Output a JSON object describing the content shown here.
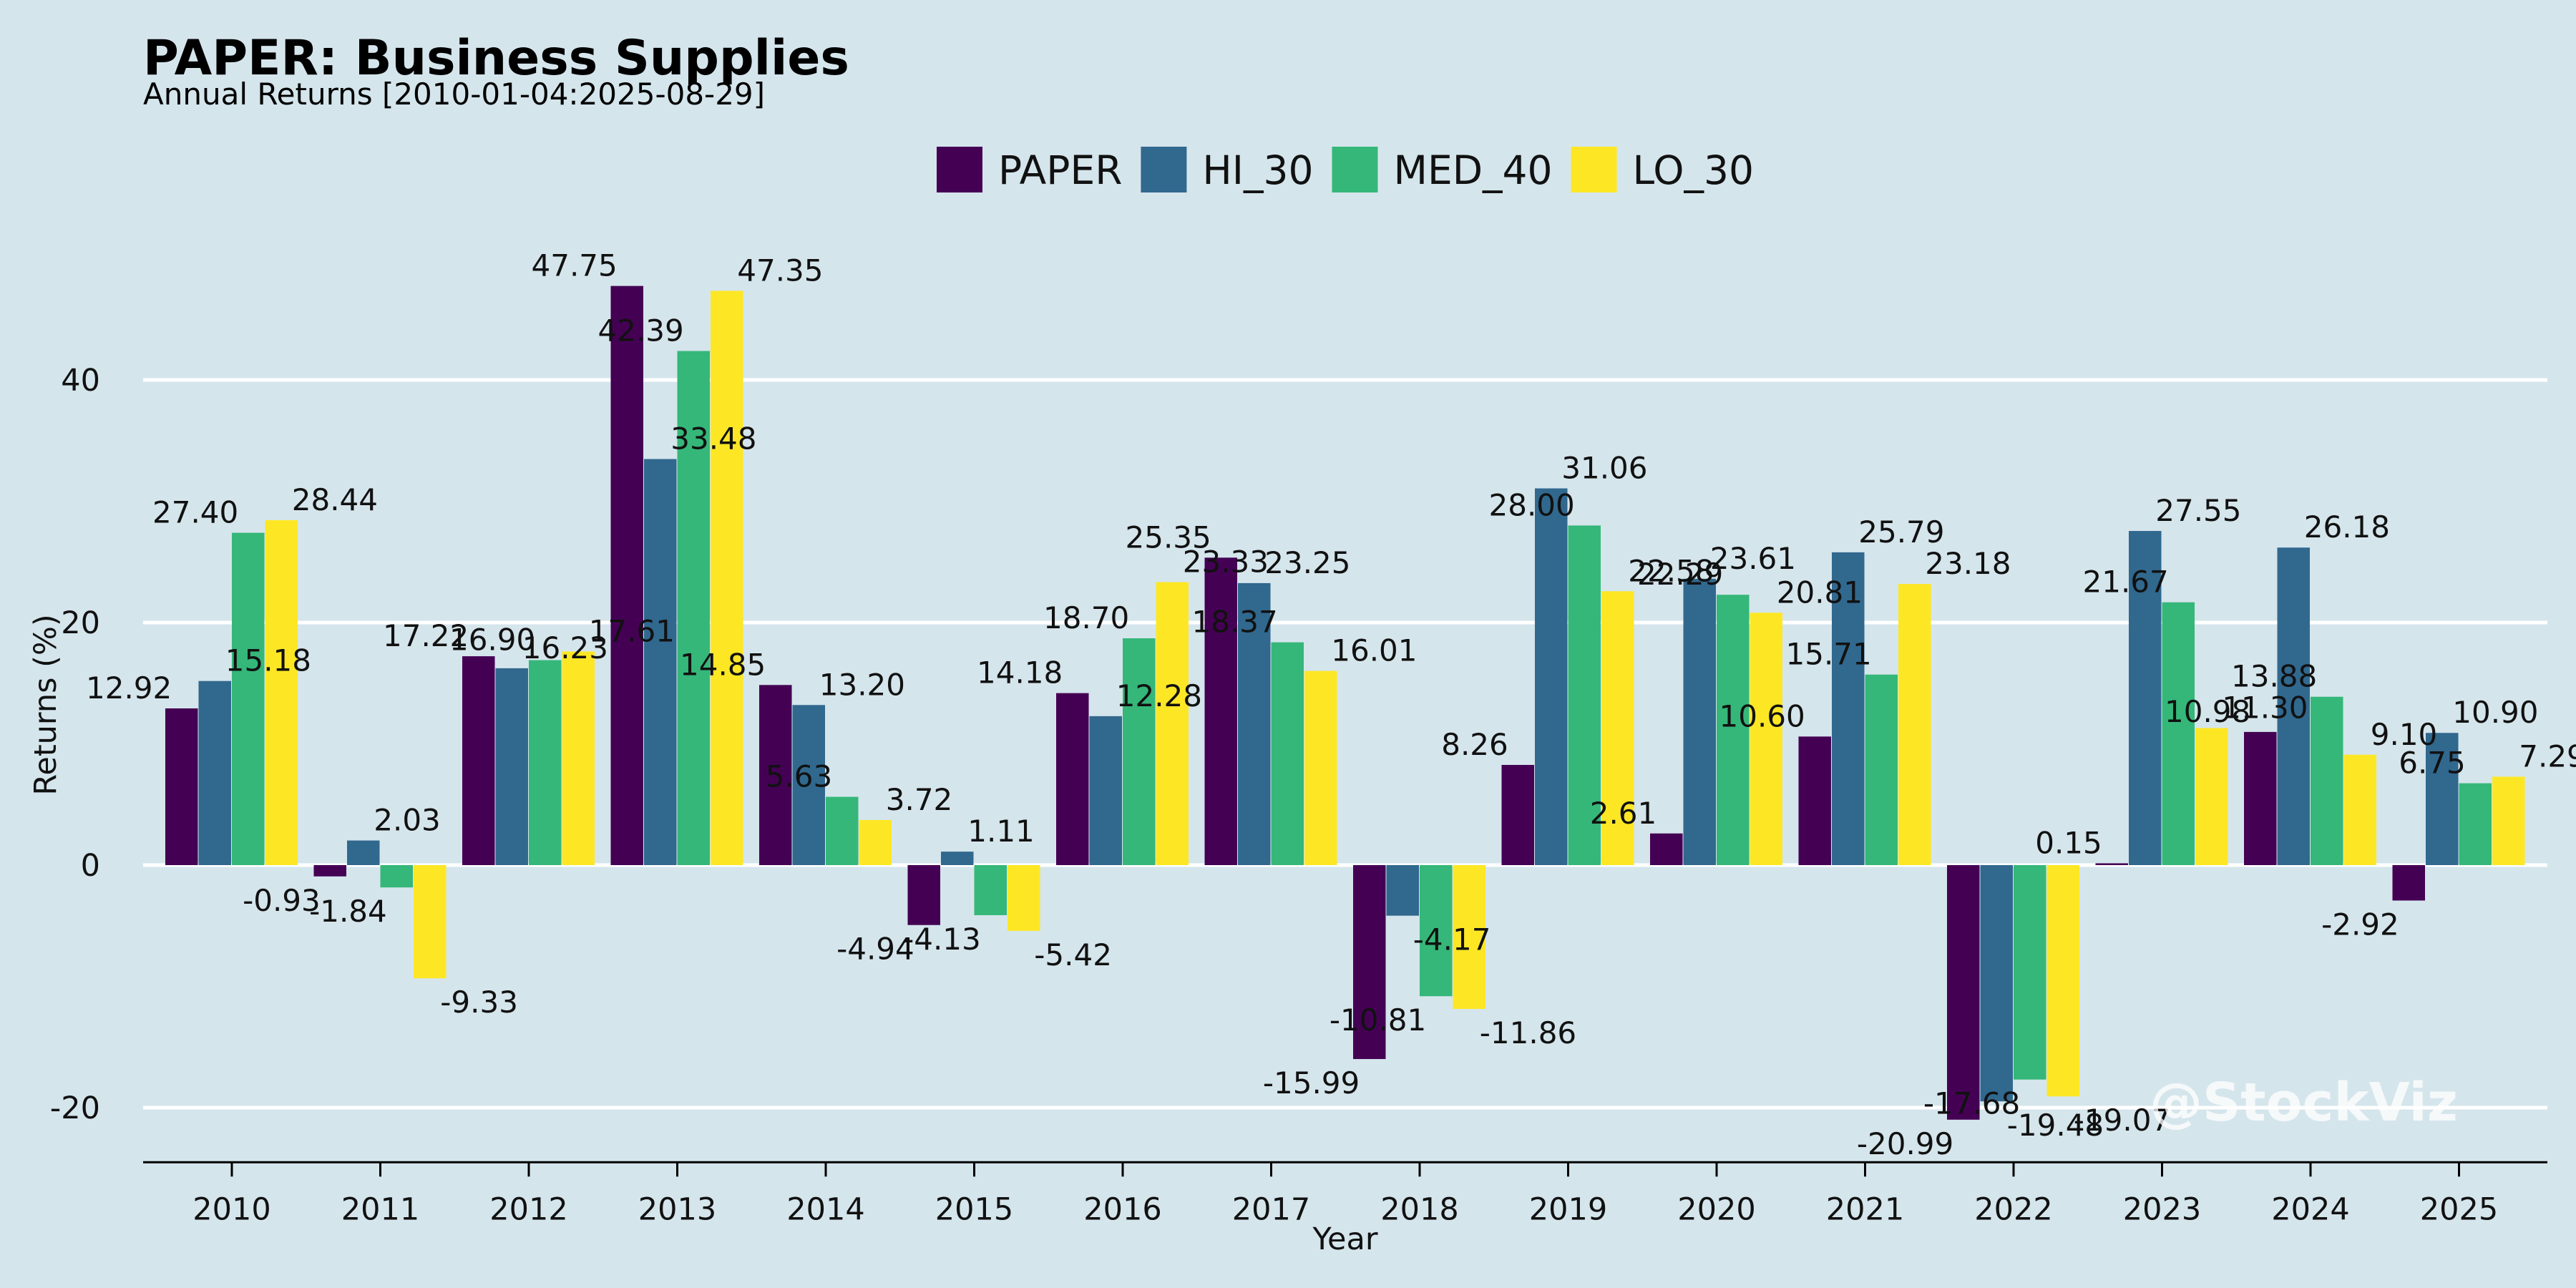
{
  "colors": {
    "background": "#d5e5ec",
    "gridline": "#ffffff",
    "axis": "#000000"
  },
  "watermark": "@StockViz",
  "chart_data": {
    "type": "bar",
    "title": "PAPER: Business Supplies",
    "subtitle": "Annual Returns [2010-01-04:2025-08-29]",
    "xlabel": "Year",
    "ylabel": "Returns (%)",
    "ylim": [
      -24.5,
      55
    ],
    "yticks": [
      -20,
      0,
      20,
      40
    ],
    "grid": "horizontal",
    "legend_position": "top-center",
    "categories": [
      "2010",
      "2011",
      "2012",
      "2013",
      "2014",
      "2015",
      "2016",
      "2017",
      "2018",
      "2019",
      "2020",
      "2021",
      "2022",
      "2023",
      "2024",
      "2025"
    ],
    "series": [
      {
        "name": "PAPER",
        "color": "#440154",
        "values": [
          12.92,
          -0.93,
          17.22,
          47.75,
          14.85,
          -4.94,
          14.18,
          25.35,
          -15.99,
          8.26,
          2.61,
          10.6,
          -20.99,
          0.15,
          10.98,
          -2.92
        ]
      },
      {
        "name": "HI_30",
        "color": "#31688e",
        "values": [
          15.18,
          2.03,
          16.23,
          33.48,
          13.2,
          1.11,
          12.28,
          23.25,
          -4.17,
          31.06,
          23.61,
          25.79,
          -19.48,
          27.55,
          26.18,
          10.9
        ]
      },
      {
        "name": "MED_40",
        "color": "#35b779",
        "values": [
          27.4,
          -1.84,
          16.9,
          42.39,
          5.63,
          -4.13,
          18.7,
          18.37,
          -10.81,
          28.0,
          22.29,
          15.71,
          -17.68,
          21.67,
          13.88,
          6.75
        ]
      },
      {
        "name": "LO_30",
        "color": "#fde725",
        "values": [
          28.44,
          -9.33,
          17.61,
          47.35,
          3.72,
          -5.42,
          23.33,
          16.01,
          -11.86,
          22.58,
          20.81,
          23.18,
          -19.07,
          11.3,
          9.1,
          7.29
        ]
      }
    ]
  }
}
